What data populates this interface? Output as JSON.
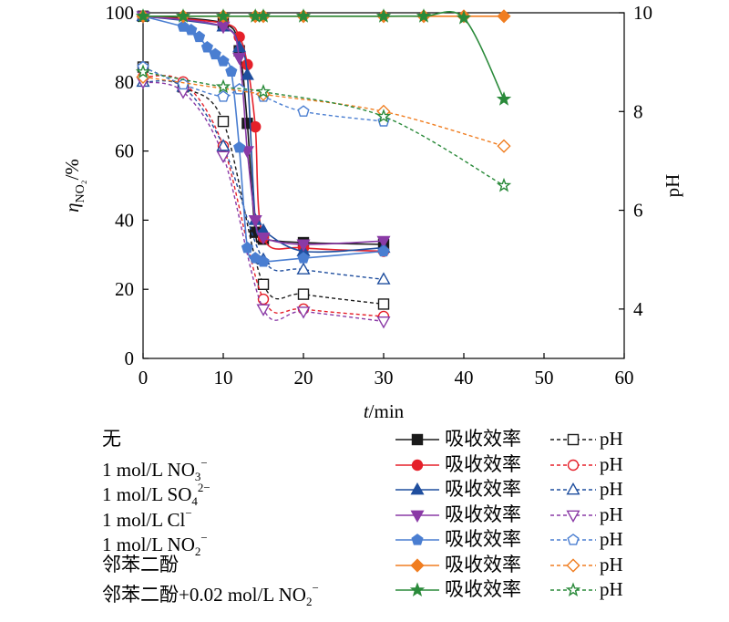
{
  "chart_data": {
    "type": "line",
    "xlabel": {
      "var": "t",
      "unit": "/min"
    },
    "ylabel_left": {
      "var": "η",
      "sub": "NO₂",
      "unit": "/%"
    },
    "ylabel_right": "pH",
    "xlim": [
      0,
      60
    ],
    "ylim_left": [
      0,
      100
    ],
    "ylim_right": [
      3,
      10
    ],
    "x_ticks": [
      0,
      10,
      20,
      30,
      40,
      50,
      60
    ],
    "y_ticks_left": [
      0,
      20,
      40,
      60,
      80,
      100
    ],
    "y_ticks_right": [
      4,
      6,
      8,
      10
    ],
    "grid": false,
    "legend_position": "below",
    "series": [
      {
        "condition": "无",
        "condition_sub": "",
        "condition_sup": "",
        "color": "#1a1a1a",
        "marker": "square",
        "efficiency": {
          "x": [
            0,
            10,
            12,
            13,
            14,
            15,
            20,
            30
          ],
          "y": [
            99,
            97,
            89,
            68,
            36.5,
            34.5,
            33.5,
            33
          ]
        },
        "ph": {
          "x": [
            0,
            5,
            10,
            15,
            20,
            30
          ],
          "y": [
            8.9,
            8.5,
            7.8,
            4.5,
            4.3,
            4.1
          ]
        }
      },
      {
        "condition": "1 mol/L NO",
        "condition_sub": "3",
        "condition_sup": "−",
        "color": "#e5202a",
        "marker": "circle",
        "efficiency": {
          "x": [
            0,
            10,
            12,
            13,
            14,
            15,
            20,
            30
          ],
          "y": [
            99,
            97,
            93,
            85,
            67,
            35,
            32,
            31
          ]
        },
        "ph": {
          "x": [
            0,
            5,
            10,
            15,
            20,
            30
          ],
          "y": [
            8.7,
            8.6,
            7.3,
            4.2,
            4.0,
            3.85
          ]
        }
      },
      {
        "condition": "1 mol/L SO",
        "condition_sub": "4",
        "condition_sup": "2−",
        "color": "#1f4e9e",
        "marker": "triangle-up",
        "efficiency": {
          "x": [
            0,
            10,
            12,
            13,
            14,
            15,
            20,
            30
          ],
          "y": [
            99,
            96,
            90,
            82,
            40,
            37,
            31,
            32
          ]
        },
        "ph": {
          "x": [
            0,
            5,
            10,
            15,
            20,
            30
          ],
          "y": [
            8.6,
            8.5,
            7.3,
            5.0,
            4.8,
            4.6
          ]
        }
      },
      {
        "condition": "1 mol/L Cl",
        "condition_sub": "",
        "condition_sup": "−",
        "color": "#8a3aa6",
        "marker": "triangle-down",
        "efficiency": {
          "x": [
            0,
            10,
            12,
            13,
            14,
            15,
            20,
            30
          ],
          "y": [
            99,
            96,
            87,
            60,
            40,
            35,
            33,
            34
          ]
        },
        "ph": {
          "x": [
            0,
            5,
            10,
            15,
            20,
            30
          ],
          "y": [
            8.6,
            8.4,
            7.1,
            4.0,
            3.95,
            3.75
          ]
        }
      },
      {
        "condition": "1 mol/L NO",
        "condition_sub": "2",
        "condition_sup": "−",
        "color": "#4a7ed1",
        "marker": "pentagon",
        "efficiency": {
          "x": [
            0,
            5,
            6,
            7,
            8,
            9,
            10,
            11,
            12,
            13,
            14,
            15,
            20,
            30
          ],
          "y": [
            99,
            96,
            95,
            93,
            90,
            88,
            86,
            83,
            61,
            32,
            29,
            28,
            29,
            31
          ]
        },
        "ph": {
          "x": [
            0,
            5,
            10,
            12,
            15,
            20,
            30
          ],
          "y": [
            8.9,
            8.55,
            8.3,
            8.45,
            8.3,
            8.0,
            7.8
          ]
        }
      },
      {
        "condition": "邻苯二酚",
        "condition_sub": "",
        "condition_sup": "",
        "color": "#f07d20",
        "marker": "diamond",
        "efficiency": {
          "x": [
            0,
            5,
            10,
            14,
            15,
            20,
            30,
            35,
            40,
            45
          ],
          "y": [
            99,
            99,
            99,
            99,
            99,
            99,
            99,
            99,
            99,
            99
          ]
        },
        "ph": {
          "x": [
            0,
            15,
            30,
            45
          ],
          "y": [
            8.7,
            8.35,
            8.0,
            7.3
          ]
        }
      },
      {
        "condition": "邻苯二酚+0.02 mol/L NO",
        "condition_sub": "2",
        "condition_sup": "−",
        "color": "#2a8a3a",
        "marker": "star",
        "efficiency": {
          "x": [
            0,
            5,
            10,
            14,
            15,
            20,
            30,
            35,
            40,
            45
          ],
          "y": [
            99,
            99,
            99,
            99,
            99,
            99,
            99,
            99,
            98.5,
            75
          ]
        },
        "ph": {
          "x": [
            0,
            10,
            15,
            30,
            45
          ],
          "y": [
            8.8,
            8.5,
            8.4,
            7.9,
            6.5
          ]
        }
      }
    ]
  },
  "legend": {
    "efficiency_label": "吸收效率",
    "ph_label": "pH"
  }
}
